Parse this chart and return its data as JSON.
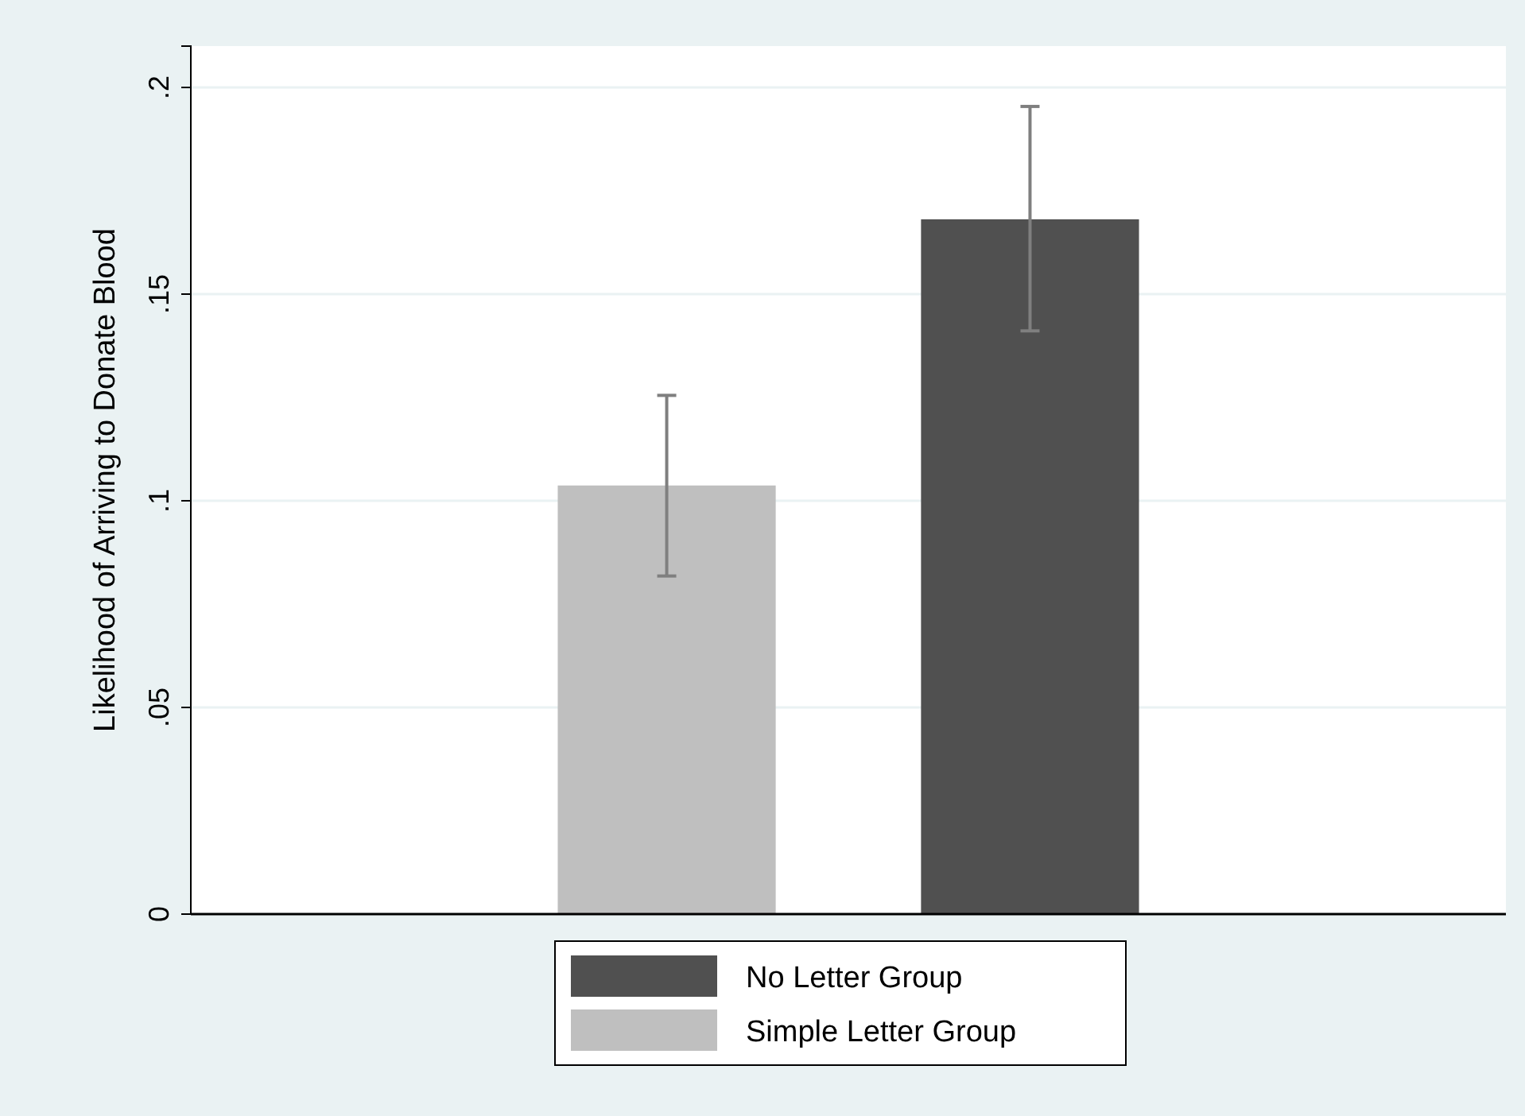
{
  "chart_data": {
    "type": "bar",
    "ylabel": "Likelihood of Arriving to Donate Blood",
    "categories": [
      null
    ],
    "series": [
      {
        "name": "Simple Letter Group",
        "color": "#bfbfbf",
        "values": [
          0.1037
        ],
        "errors": [
          [
            0.0818,
            0.1255
          ]
        ]
      },
      {
        "name": "No Letter Group",
        "color": "#505050",
        "values": [
          0.1681
        ],
        "errors": [
          [
            0.1411,
            0.1954
          ]
        ]
      }
    ],
    "ylim": [
      0,
      0.21
    ],
    "yticks": [
      {
        "value": 0,
        "label": "0"
      },
      {
        "value": 0.05,
        "label": ".05"
      },
      {
        "value": 0.1,
        "label": ".1"
      },
      {
        "value": 0.15,
        "label": ".15"
      },
      {
        "value": 0.2,
        "label": ".2"
      }
    ],
    "grid": "y",
    "legend": "bottom"
  }
}
